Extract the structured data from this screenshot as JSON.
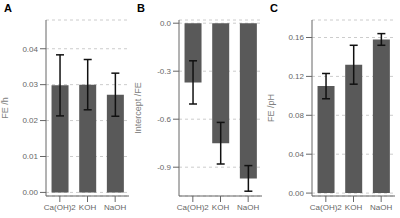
{
  "chart_data": [
    {
      "type": "bar",
      "title": "A",
      "ylabel": "FE /h",
      "categories": [
        "Ca(OH)2",
        "KOH",
        "NaOH"
      ],
      "values": [
        0.0298,
        0.03,
        0.0272
      ],
      "errors": [
        0.0085,
        0.007,
        0.006
      ],
      "ylim": [
        -0.001,
        0.048
      ],
      "yticks": [
        {
          "value": 0,
          "label": "0.00"
        },
        0.01,
        0.02,
        0.03,
        0.04
      ],
      "color": "#595959",
      "grid": true
    },
    {
      "type": "bar",
      "title": "B",
      "ylabel": "Intercept /FE",
      "categories": [
        "Ca(OH)2",
        "KOH",
        "NaOH"
      ],
      "values": [
        -0.37,
        -0.75,
        -0.97
      ],
      "errors": [
        0.135,
        0.13,
        0.08
      ],
      "ylim": [
        -1.08,
        0.02
      ],
      "yticks": [
        {
          "value": 0,
          "label": "0.0"
        },
        -0.3,
        -0.6,
        -0.9
      ],
      "color": "#595959",
      "grid": true
    },
    {
      "type": "bar",
      "title": "C",
      "ylabel": "FE /pH",
      "categories": [
        "Ca(OH)2",
        "KOH",
        "NaOH"
      ],
      "values": [
        0.11,
        0.132,
        0.158
      ],
      "errors": [
        0.013,
        0.02,
        0.006
      ],
      "ylim": [
        -0.003,
        0.178
      ],
      "yticks": [
        {
          "value": 0,
          "label": "0.00"
        },
        0.04,
        0.08,
        0.12,
        0.16
      ],
      "color": "#595959",
      "grid": true
    }
  ]
}
